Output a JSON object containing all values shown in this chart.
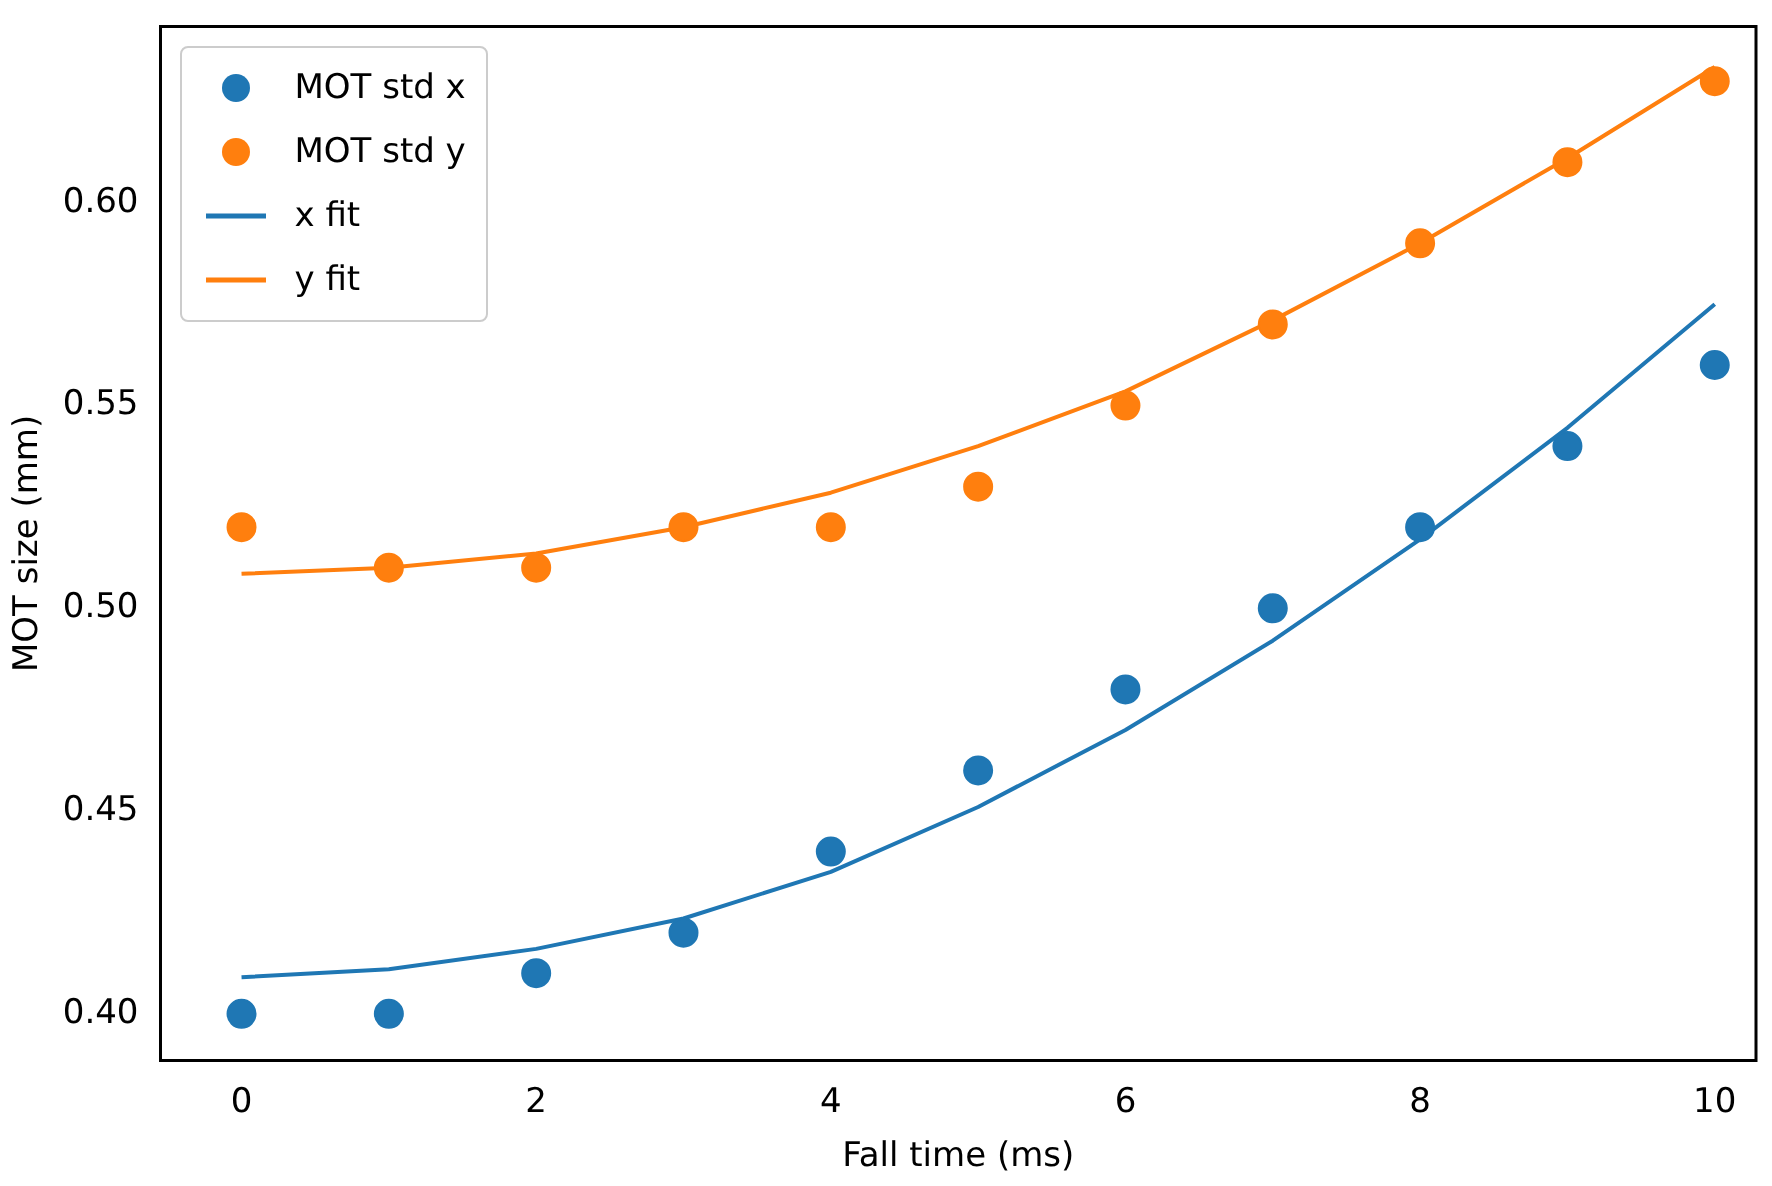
{
  "chart_data": {
    "type": "scatter",
    "xlabel": "Fall time (ms)",
    "ylabel": "MOT size (mm)",
    "x": [
      0,
      1,
      2,
      3,
      4,
      5,
      6,
      7,
      8,
      9,
      10
    ],
    "series": [
      {
        "name": "MOT std x",
        "color": "#1f77b4",
        "values": [
          0.4,
          0.4,
          0.41,
          0.42,
          0.44,
          0.46,
          0.48,
          0.5,
          0.52,
          0.54,
          0.56
        ]
      },
      {
        "name": "MOT std y",
        "color": "#ff7f0e",
        "values": [
          0.52,
          0.51,
          0.51,
          0.52,
          0.52,
          0.53,
          0.55,
          0.57,
          0.59,
          0.61,
          0.63
        ]
      },
      {
        "name": "x fit",
        "type": "line",
        "marker": "none",
        "color": "#1f77b4",
        "values": [
          0.409,
          0.411,
          0.416,
          0.4235,
          0.435,
          0.451,
          0.47,
          0.492,
          0.517,
          0.5445,
          0.575
        ]
      },
      {
        "name": "y fit",
        "type": "line",
        "marker": "none",
        "color": "#ff7f0e",
        "values": [
          0.5085,
          0.51,
          0.5135,
          0.52,
          0.5285,
          0.54,
          0.5535,
          0.571,
          0.59,
          0.611,
          0.6335
        ]
      }
    ],
    "xlim": [
      -0.55,
      10.28
    ],
    "xticks": [
      0,
      2,
      4,
      6,
      8,
      10
    ],
    "ylim": [
      0.3885,
      0.6435
    ],
    "yticks": [
      {
        "value": 0.4,
        "label": "0.40"
      },
      0.45,
      {
        "value": 0.5,
        "label": "0.50"
      },
      0.55,
      {
        "value": 0.6,
        "label": "0.60"
      }
    ],
    "grid": false,
    "legend": "top left",
    "marker": "circle",
    "line_style": "solid"
  }
}
